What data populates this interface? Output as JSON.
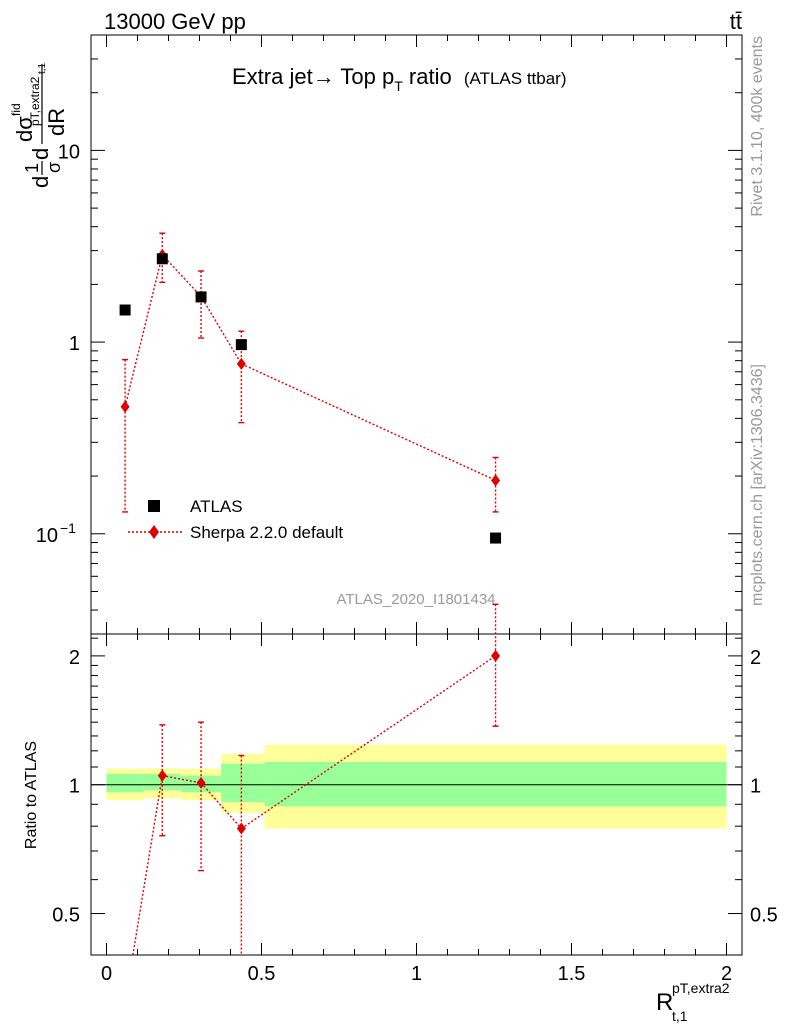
{
  "header": {
    "energy_label": "13000 GeV pp",
    "process_label": "tt̄"
  },
  "side": {
    "rivet_label": "Rivet 3.1.10,  400k events",
    "source_label": "mcplots.cern.ch [arXiv:1306.3436]"
  },
  "main_panel": {
    "title_main": "Extra jet→ Top p",
    "title_sub": "T",
    "title_tail": " ratio",
    "title_small": "(ATLAS ttbar)",
    "analysis_id": "ATLAS_2020_I1801434",
    "ylabel_parts": [
      "d",
      "1",
      "σ",
      "d",
      "dσ",
      "fid",
      "pT,extra2",
      "t,1",
      "dR"
    ],
    "y_ticks": [
      {
        "value": 10,
        "label": "10"
      },
      {
        "value": 1,
        "label": "1"
      },
      {
        "value": 0.1,
        "label": "10",
        "sup": "−1"
      }
    ]
  },
  "ratio_panel": {
    "ylabel": "Ratio to ATLAS",
    "y_ticks": [
      {
        "value": 0.5,
        "label": "0.5"
      },
      {
        "value": 1,
        "label": "1"
      },
      {
        "value": 2,
        "label": "2"
      }
    ]
  },
  "x_axis": {
    "label_main": "R",
    "label_sup": "pT,extra2",
    "label_sub": "t,1",
    "ticks": [
      {
        "value": 0,
        "label": "0"
      },
      {
        "value": 0.5,
        "label": "0.5"
      },
      {
        "value": 1,
        "label": "1"
      },
      {
        "value": 1.5,
        "label": "1.5"
      },
      {
        "value": 2,
        "label": "2"
      }
    ]
  },
  "legend": [
    {
      "name": "ATLAS",
      "marker": "square",
      "color": "#000000"
    },
    {
      "name": "Sherpa 2.2.0 default",
      "marker": "diamond",
      "color": "#e00000"
    }
  ],
  "colors": {
    "mc": "#e00000",
    "band_inner": "#99ff99",
    "band_outer": "#ffff99",
    "data": "#000000"
  },
  "chart_data": {
    "type": "scatter",
    "xlim": [
      -0.05,
      2.05
    ],
    "ylim_main": [
      0.03,
      40
    ],
    "yscale_main": "log",
    "ylim_ratio": [
      0.4,
      2.25
    ],
    "yscale_ratio": "log",
    "legend_placement": "lower-left",
    "series": [
      {
        "name": "ATLAS",
        "x": [
          0.06,
          0.18,
          0.305,
          0.435,
          1.255
        ],
        "y": [
          1.47,
          2.72,
          1.72,
          0.97,
          0.095
        ],
        "bins": [
          [
            0.0,
            0.12
          ],
          [
            0.12,
            0.24
          ],
          [
            0.24,
            0.37
          ],
          [
            0.37,
            0.51
          ],
          [
            0.51,
            2.0
          ]
        ],
        "ratio_band_inner": [
          [
            0.96,
            1.06
          ],
          [
            0.97,
            1.06
          ],
          [
            0.96,
            1.05
          ],
          [
            0.91,
            1.12
          ],
          [
            0.89,
            1.13
          ]
        ],
        "ratio_band_outer": [
          [
            0.92,
            1.09
          ],
          [
            0.93,
            1.09
          ],
          [
            0.92,
            1.09
          ],
          [
            0.86,
            1.18
          ],
          [
            0.79,
            1.24
          ]
        ]
      },
      {
        "name": "Sherpa 2.2.0 default",
        "x": [
          0.06,
          0.18,
          0.305,
          0.435,
          1.255
        ],
        "y": [
          0.46,
          2.85,
          1.73,
          0.77,
          0.19
        ],
        "yerr_low": [
          0.33,
          0.8,
          0.68,
          0.39,
          0.06
        ],
        "yerr_high": [
          0.35,
          0.85,
          0.62,
          0.37,
          0.06
        ],
        "ratio": [
          0.31,
          1.05,
          1.01,
          0.79,
          2.0
        ],
        "ratio_err_low": [
          0.22,
          0.29,
          0.38,
          0.4,
          0.63
        ],
        "ratio_err_high": [
          0.24,
          0.33,
          0.39,
          0.38,
          0.64
        ]
      }
    ]
  }
}
